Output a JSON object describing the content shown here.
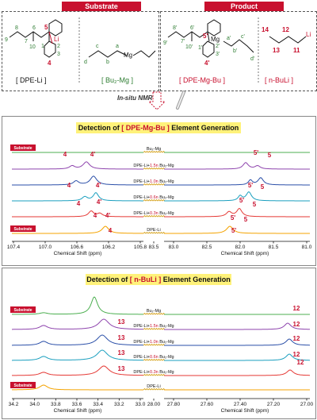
{
  "top": {
    "substrate_header": "Substrate",
    "product_header": "Product",
    "dpe_li_label": "[ DPE-Li ]",
    "bu2mg_label": "[ Bu₂-Mg ]",
    "dpe_mg_bu_label": "[ DPE-Mg-Bu ]",
    "nbuli_label": "[ n-BuLi ]",
    "insitu_label": "In-situ NMR",
    "li": "Li",
    "mg": "Mg",
    "atom_labels_dpe": [
      "1",
      "2",
      "3",
      "4",
      "5",
      "6",
      "7",
      "8",
      "9",
      "10"
    ],
    "atom_labels_bu": [
      "a",
      "b",
      "c",
      "d"
    ],
    "atom_labels_product": [
      "1'",
      "2'",
      "3'",
      "4'",
      "5'",
      "6'",
      "7'",
      "8'",
      "9'",
      "10'",
      "a'",
      "b'",
      "c'",
      "d'"
    ],
    "atom_labels_buli": [
      "11",
      "12",
      "13",
      "14"
    ]
  },
  "panel1": {
    "title_prefix": "Detection of ",
    "title_highlight": "[ DPE-Mg-Bu ]",
    "title_suffix": " Element Generation",
    "substrate_tag": "Substrate",
    "rows": [
      {
        "label": "Bu₂-Mg"
      },
      {
        "label_pre": "DPE-Li+",
        "eq": "1.5n",
        "label_post": " Bu₂-Mg"
      },
      {
        "label_pre": "DPE-Li+",
        "eq": "1.0n",
        "label_post": " Bu₂-Mg"
      },
      {
        "label_pre": "DPE-Li+",
        "eq": "0.6n",
        "label_post": " Bu₂-Mg"
      },
      {
        "label_pre": "DPE-Li+",
        "eq": "0.3n",
        "label_post": " Bu₂-Mg"
      },
      {
        "label": "DPE-Li"
      }
    ],
    "peak_labels": [
      "4",
      "4'",
      "5'",
      "5"
    ],
    "ticks_left": [
      "107.4",
      "107.0",
      "106.6",
      "106.2",
      "105.8"
    ],
    "ticks_mid": [
      "83.5"
    ],
    "ticks_right": [
      "83.0",
      "82.5",
      "82.0",
      "81.5",
      "81.0"
    ],
    "xlabel": "Chemical Shift (ppm)"
  },
  "panel2": {
    "title_prefix": "Detection of ",
    "title_highlight": "[ n-BuLi ]",
    "title_suffix": " Element Generation",
    "substrate_tag": "Substrate",
    "rows": [
      {
        "label": "Bu₂-Mg"
      },
      {
        "label_pre": "DPE-Li+",
        "eq": "1.5n",
        "label_post": " Bu₂-Mg"
      },
      {
        "label_pre": "DPE-Li+",
        "eq": "1.0n",
        "label_post": " Bu₂-Mg"
      },
      {
        "label_pre": "DPE-Li+",
        "eq": "0.6n",
        "label_post": " Bu₂-Mg"
      },
      {
        "label_pre": "DPE-Li+",
        "eq": "0.3n",
        "label_post": " Bu₂-Mg"
      },
      {
        "label": "DPE-Li"
      }
    ],
    "peak_labels": [
      "13",
      "12"
    ],
    "ticks_left": [
      "34.2",
      "34.0",
      "33.8",
      "33.6",
      "33.4",
      "33.2",
      "33.0"
    ],
    "ticks_mid": [
      "28.00"
    ],
    "ticks_right": [
      "27.80",
      "27.60",
      "27.40",
      "27.20",
      "27.00"
    ],
    "xlabel": "Chemical Shift (ppm)"
  },
  "colors": {
    "red": "#c8102e",
    "green": "#2e7d32",
    "series": [
      "#4caf50",
      "#8e44ad",
      "#2a4fa8",
      "#1a9fbf",
      "#e53935",
      "#f4a300"
    ]
  }
}
